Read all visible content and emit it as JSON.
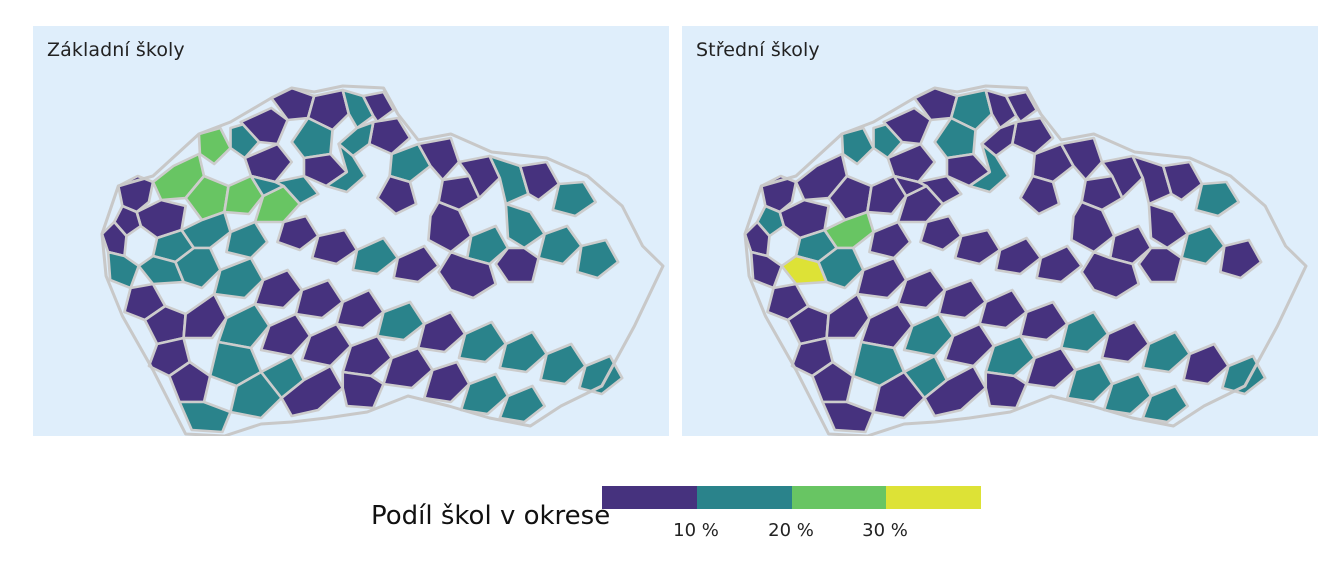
{
  "maps": [
    {
      "title": "Základní školy",
      "districts": [
        {
          "id": "TC",
          "class": 0
        },
        {
          "id": "CV",
          "class": 2
        },
        {
          "id": "MO",
          "class": 2
        },
        {
          "id": "TP",
          "class": 1
        },
        {
          "id": "UL",
          "class": 0
        },
        {
          "id": "DC",
          "class": 0
        },
        {
          "id": "CL",
          "class": 0
        },
        {
          "id": "LI",
          "class": 1
        },
        {
          "id": "JN",
          "class": 0
        },
        {
          "id": "SM",
          "class": 0
        },
        {
          "id": "KV",
          "class": 0
        },
        {
          "id": "SO",
          "class": 0
        },
        {
          "id": "CH",
          "class": 0
        },
        {
          "id": "LN",
          "class": 2
        },
        {
          "id": "LT",
          "class": 0
        },
        {
          "id": "ML",
          "class": 1
        },
        {
          "id": "JC",
          "class": 1
        },
        {
          "id": "TU",
          "class": 1
        },
        {
          "id": "NA",
          "class": 0
        },
        {
          "id": "TA",
          "class": 2
        },
        {
          "id": "PS",
          "class": 2
        },
        {
          "id": "RA",
          "class": 1
        },
        {
          "id": "KL",
          "class": 1
        },
        {
          "id": "PR",
          "class": 0
        },
        {
          "id": "NB",
          "class": 1
        },
        {
          "id": "HK",
          "class": 0
        },
        {
          "id": "RK",
          "class": 0
        },
        {
          "id": "BR",
          "class": 0
        },
        {
          "id": "SU",
          "class": 1
        },
        {
          "id": "JE",
          "class": 0
        },
        {
          "id": "OP",
          "class": 1
        },
        {
          "id": "PJ",
          "class": 1
        },
        {
          "id": "BE",
          "class": 1
        },
        {
          "id": "PV",
          "class": 1
        },
        {
          "id": "KO",
          "class": 1
        },
        {
          "id": "KH",
          "class": 0
        },
        {
          "id": "PA",
          "class": 0
        },
        {
          "id": "CR",
          "class": 1
        },
        {
          "id": "UO",
          "class": 0
        },
        {
          "id": "OL",
          "class": 0
        },
        {
          "id": "BRU",
          "class": 1
        },
        {
          "id": "OV",
          "class": 1
        },
        {
          "id": "KA",
          "class": 1
        },
        {
          "id": "FM",
          "class": 1
        },
        {
          "id": "DO",
          "class": 0
        },
        {
          "id": "PZ",
          "class": 1
        },
        {
          "id": "PB",
          "class": 1
        },
        {
          "id": "PE",
          "class": 1
        },
        {
          "id": "HB",
          "class": 0
        },
        {
          "id": "ZR",
          "class": 0
        },
        {
          "id": "SV",
          "class": 0
        },
        {
          "id": "BK",
          "class": 1
        },
        {
          "id": "PT",
          "class": 0
        },
        {
          "id": "ST",
          "class": 0
        },
        {
          "id": "CB",
          "class": 1
        },
        {
          "id": "JH",
          "class": 0
        },
        {
          "id": "TR",
          "class": 0
        },
        {
          "id": "JI",
          "class": 0
        },
        {
          "id": "BO",
          "class": 0
        },
        {
          "id": "PRO",
          "class": 0
        },
        {
          "id": "PRE",
          "class": 1
        },
        {
          "id": "KM",
          "class": 1
        },
        {
          "id": "ZL",
          "class": 1
        },
        {
          "id": "VS",
          "class": 1
        },
        {
          "id": "NJ",
          "class": 0
        },
        {
          "id": "BV",
          "class": 0
        },
        {
          "id": "HO",
          "class": 1
        },
        {
          "id": "UH",
          "class": 1
        },
        {
          "id": "ZN",
          "class": 0
        },
        {
          "id": "VY",
          "class": 1
        },
        {
          "id": "BI",
          "class": 1
        },
        {
          "id": "KR",
          "class": 0
        },
        {
          "id": "CK",
          "class": 1
        },
        {
          "id": "PI",
          "class": 1
        },
        {
          "id": "MB",
          "class": 0
        },
        {
          "id": "PH",
          "class": 0
        },
        {
          "id": "PA2",
          "class": 0
        }
      ]
    },
    {
      "title": "Střední školy",
      "districts": [
        {
          "id": "TC",
          "class": 0
        },
        {
          "id": "CV",
          "class": 1
        },
        {
          "id": "MO",
          "class": 0
        },
        {
          "id": "TP",
          "class": 1
        },
        {
          "id": "UL",
          "class": 0
        },
        {
          "id": "DC",
          "class": 0
        },
        {
          "id": "CL",
          "class": 1
        },
        {
          "id": "LI",
          "class": 0
        },
        {
          "id": "JN",
          "class": 0
        },
        {
          "id": "SM",
          "class": 0
        },
        {
          "id": "KV",
          "class": 0
        },
        {
          "id": "SO",
          "class": 1
        },
        {
          "id": "CH",
          "class": 0
        },
        {
          "id": "LN",
          "class": 0
        },
        {
          "id": "LT",
          "class": 0
        },
        {
          "id": "ML",
          "class": 1
        },
        {
          "id": "JC",
          "class": 0
        },
        {
          "id": "TU",
          "class": 0
        },
        {
          "id": "NA",
          "class": 0
        },
        {
          "id": "TA",
          "class": 0
        },
        {
          "id": "PS",
          "class": 0
        },
        {
          "id": "RA",
          "class": 0
        },
        {
          "id": "KL",
          "class": 0
        },
        {
          "id": "PR",
          "class": 0
        },
        {
          "id": "NB",
          "class": 1
        },
        {
          "id": "HK",
          "class": 0
        },
        {
          "id": "RK",
          "class": 0
        },
        {
          "id": "BR",
          "class": 0
        },
        {
          "id": "SU",
          "class": 0
        },
        {
          "id": "JE",
          "class": 0
        },
        {
          "id": "OP",
          "class": 1
        },
        {
          "id": "PJ",
          "class": 0
        },
        {
          "id": "BE",
          "class": 1
        },
        {
          "id": "PV",
          "class": 2
        },
        {
          "id": "KO",
          "class": 0
        },
        {
          "id": "KH",
          "class": 0
        },
        {
          "id": "PA",
          "class": 0
        },
        {
          "id": "CR",
          "class": 0
        },
        {
          "id": "UO",
          "class": 0
        },
        {
          "id": "OL",
          "class": 0
        },
        {
          "id": "BRU",
          "class": 0
        },
        {
          "id": "OV",
          "class": 0
        },
        {
          "id": "KA",
          "class": 1
        },
        {
          "id": "FM",
          "class": 0
        },
        {
          "id": "DO",
          "class": 0
        },
        {
          "id": "PZ",
          "class": 3
        },
        {
          "id": "PB",
          "class": 1
        },
        {
          "id": "PE",
          "class": 0
        },
        {
          "id": "HB",
          "class": 0
        },
        {
          "id": "ZR",
          "class": 0
        },
        {
          "id": "SV",
          "class": 0
        },
        {
          "id": "BK",
          "class": 0
        },
        {
          "id": "PT",
          "class": 0
        },
        {
          "id": "ST",
          "class": 0
        },
        {
          "id": "CB",
          "class": 0
        },
        {
          "id": "JH",
          "class": 1
        },
        {
          "id": "TR",
          "class": 0
        },
        {
          "id": "JI",
          "class": 1
        },
        {
          "id": "BO",
          "class": 0
        },
        {
          "id": "PRO",
          "class": 1
        },
        {
          "id": "PRE",
          "class": 0
        },
        {
          "id": "KM",
          "class": 1
        },
        {
          "id": "ZL",
          "class": 0
        },
        {
          "id": "VS",
          "class": 1
        },
        {
          "id": "NJ",
          "class": 0
        },
        {
          "id": "BV",
          "class": 1
        },
        {
          "id": "HO",
          "class": 1
        },
        {
          "id": "UH",
          "class": 1
        },
        {
          "id": "ZN",
          "class": 0
        },
        {
          "id": "VY",
          "class": 1
        },
        {
          "id": "BI",
          "class": 1
        },
        {
          "id": "KR",
          "class": 0
        },
        {
          "id": "CK",
          "class": 0
        },
        {
          "id": "PI",
          "class": 0
        },
        {
          "id": "MB",
          "class": 0
        },
        {
          "id": "PH",
          "class": 0
        },
        {
          "id": "PA2",
          "class": 0
        }
      ]
    }
  ],
  "legend": {
    "title": "Podíl škol v okrese",
    "colors": [
      "#46327e",
      "#2a838b",
      "#68c563",
      "#dde236"
    ],
    "ticks": [
      "10 %",
      "20 %",
      "30 %"
    ]
  }
}
